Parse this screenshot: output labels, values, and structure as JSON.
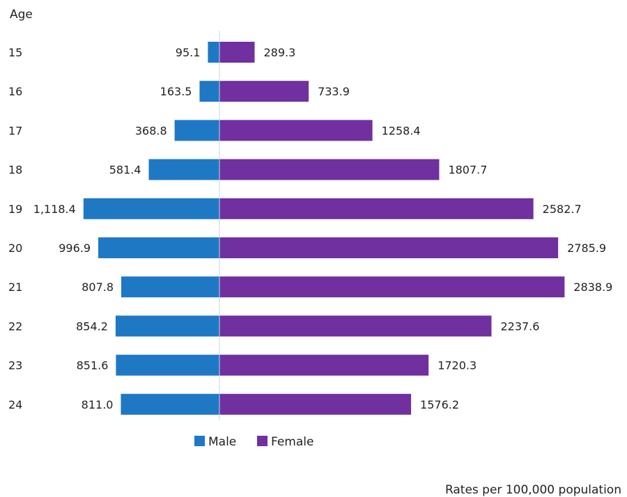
{
  "chart_data": {
    "type": "bar",
    "orientation": "horizontal-diverging",
    "ylabel": "Age",
    "categories": [
      "15",
      "16",
      "17",
      "18",
      "19",
      "20",
      "21",
      "22",
      "23",
      "24"
    ],
    "series": [
      {
        "name": "Male",
        "color": "#1f78c4",
        "values": [
          95.1,
          163.5,
          368.8,
          581.4,
          1118.4,
          996.9,
          807.8,
          854.2,
          851.6,
          811.0
        ],
        "labels": [
          "95.1",
          "163.5",
          "368.8",
          "581.4",
          "1,118.4",
          "996.9",
          "807.8",
          "854.2",
          "851.6",
          "811.0"
        ]
      },
      {
        "name": "Female",
        "color": "#7030a0",
        "values": [
          289.3,
          733.9,
          1258.4,
          1807.7,
          2582.7,
          2785.9,
          2838.9,
          2237.6,
          1720.3,
          1576.2
        ],
        "labels": [
          "289.3",
          "733.9",
          "1258.4",
          "1807.7",
          "2582.7",
          "2785.9",
          "2838.9",
          "2237.6",
          "1720.3",
          "1576.2"
        ]
      }
    ],
    "legend_position": "bottom",
    "grid": false,
    "note": "Rates per 100,000 population"
  }
}
